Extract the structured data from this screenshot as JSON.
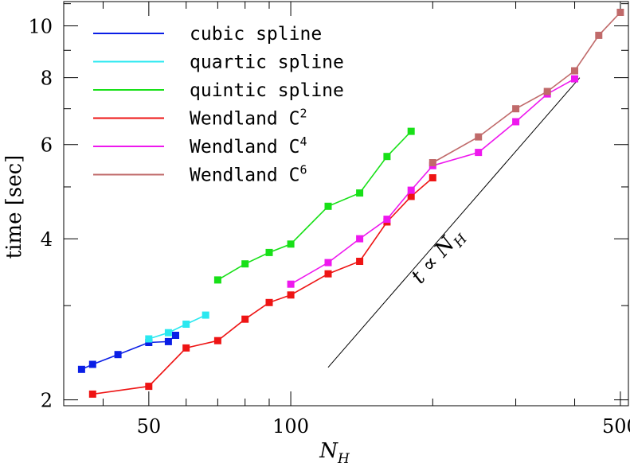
{
  "chart_data": {
    "type": "line",
    "xlabel": "N",
    "xlabel_sub": "H",
    "ylabel": "time [sec]",
    "xscale": "log",
    "yscale": "log",
    "xlim": [
      33,
      520
    ],
    "ylim": [
      1.95,
      11.1
    ],
    "x_ticks": [
      50,
      100,
      500
    ],
    "y_ticks": [
      2,
      4,
      6,
      8,
      10
    ],
    "legend_placement": "top-left",
    "annotation": {
      "text": "t ∝ N",
      "sub": "H",
      "line_x": [
        120,
        410
      ],
      "line_y": [
        2.3,
        8.0
      ]
    },
    "series": [
      {
        "name": "cubic spline",
        "sup": "",
        "color": "#0a1ee6",
        "x": [
          36,
          38,
          43,
          50,
          55,
          57
        ],
        "y": [
          2.28,
          2.33,
          2.43,
          2.56,
          2.57,
          2.64
        ]
      },
      {
        "name": "quartic spline",
        "sup": "",
        "color": "#2ae8f0",
        "x": [
          50,
          55,
          60,
          66
        ],
        "y": [
          2.6,
          2.67,
          2.77,
          2.88
        ]
      },
      {
        "name": "quintic spline",
        "sup": "",
        "color": "#18e018",
        "x": [
          70,
          80,
          90,
          100,
          120,
          140,
          160,
          180
        ],
        "y": [
          3.35,
          3.59,
          3.77,
          3.91,
          4.6,
          4.87,
          5.7,
          6.35
        ]
      },
      {
        "name": "Wendland C",
        "sup": "2",
        "color": "#ee1414",
        "x": [
          38,
          50,
          60,
          70,
          80,
          90,
          100,
          120,
          140,
          160,
          180,
          200
        ],
        "y": [
          2.05,
          2.12,
          2.5,
          2.58,
          2.83,
          3.04,
          3.14,
          3.44,
          3.63,
          4.3,
          4.8,
          5.2
        ]
      },
      {
        "name": "Wendland C",
        "sup": "4",
        "color": "#ee18ee",
        "x": [
          100,
          120,
          140,
          160,
          180,
          200,
          250,
          300,
          350,
          400
        ],
        "y": [
          3.29,
          3.61,
          4.0,
          4.35,
          4.93,
          5.48,
          5.8,
          6.62,
          7.46,
          7.96
        ]
      },
      {
        "name": "Wendland C",
        "sup": "6",
        "color": "#c06a6a",
        "x": [
          200,
          250,
          300,
          350,
          400,
          450,
          500
        ],
        "y": [
          5.55,
          6.2,
          7.0,
          7.54,
          8.24,
          9.6,
          10.6
        ]
      }
    ]
  }
}
